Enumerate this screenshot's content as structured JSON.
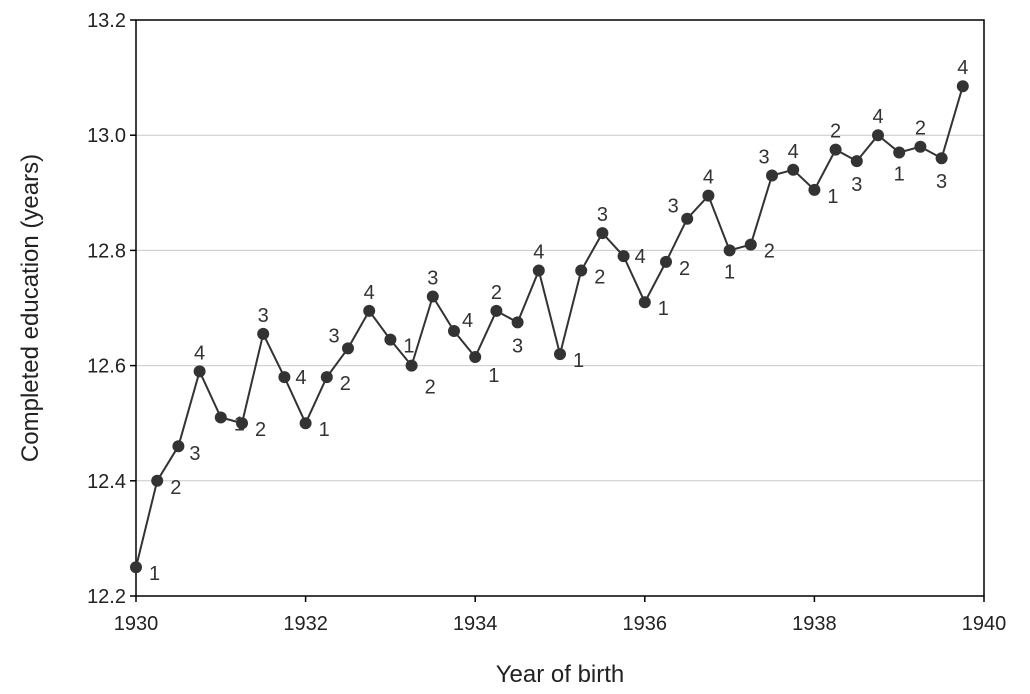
{
  "chart_data": {
    "type": "line",
    "title": "",
    "xlabel": "Year of birth",
    "ylabel": "Completed education (years)",
    "xlim": [
      1930,
      1940
    ],
    "ylim": [
      12.2,
      13.2
    ],
    "x_ticks": [
      "1930",
      "1932",
      "1934",
      "1936",
      "1938",
      "1940"
    ],
    "y_ticks": [
      "12.2",
      "12.4",
      "12.6",
      "12.8",
      "13.0",
      "13.2"
    ],
    "grid": "horizontal",
    "legend": "none",
    "colors": {
      "line": "#333333",
      "grid": "#c8c8c8"
    },
    "series": [
      {
        "points": [
          {
            "x": 1930.0,
            "y": 12.25,
            "q": "1"
          },
          {
            "x": 1930.25,
            "y": 12.4,
            "q": "2"
          },
          {
            "x": 1930.5,
            "y": 12.46,
            "q": "3"
          },
          {
            "x": 1930.75,
            "y": 12.59,
            "q": "4"
          },
          {
            "x": 1931.0,
            "y": 12.51,
            "q": "1"
          },
          {
            "x": 1931.25,
            "y": 12.5,
            "q": "2"
          },
          {
            "x": 1931.5,
            "y": 12.655,
            "q": "3"
          },
          {
            "x": 1931.75,
            "y": 12.58,
            "q": "4"
          },
          {
            "x": 1932.0,
            "y": 12.5,
            "q": "1"
          },
          {
            "x": 1932.25,
            "y": 12.58,
            "q": "2"
          },
          {
            "x": 1932.5,
            "y": 12.63,
            "q": "3"
          },
          {
            "x": 1932.75,
            "y": 12.695,
            "q": "4"
          },
          {
            "x": 1933.0,
            "y": 12.645,
            "q": "1"
          },
          {
            "x": 1933.25,
            "y": 12.6,
            "q": "2"
          },
          {
            "x": 1933.5,
            "y": 12.72,
            "q": "3"
          },
          {
            "x": 1933.75,
            "y": 12.66,
            "q": "4"
          },
          {
            "x": 1934.0,
            "y": 12.615,
            "q": "1"
          },
          {
            "x": 1934.25,
            "y": 12.695,
            "q": "2"
          },
          {
            "x": 1934.5,
            "y": 12.675,
            "q": "3"
          },
          {
            "x": 1934.75,
            "y": 12.765,
            "q": "4"
          },
          {
            "x": 1935.0,
            "y": 12.62,
            "q": "1"
          },
          {
            "x": 1935.25,
            "y": 12.765,
            "q": "2"
          },
          {
            "x": 1935.5,
            "y": 12.83,
            "q": "3"
          },
          {
            "x": 1935.75,
            "y": 12.79,
            "q": "4"
          },
          {
            "x": 1936.0,
            "y": 12.71,
            "q": "1"
          },
          {
            "x": 1936.25,
            "y": 12.78,
            "q": "2"
          },
          {
            "x": 1936.5,
            "y": 12.855,
            "q": "3"
          },
          {
            "x": 1936.75,
            "y": 12.895,
            "q": "4"
          },
          {
            "x": 1937.0,
            "y": 12.8,
            "q": "1"
          },
          {
            "x": 1937.25,
            "y": 12.81,
            "q": "2"
          },
          {
            "x": 1937.5,
            "y": 12.93,
            "q": "3"
          },
          {
            "x": 1937.75,
            "y": 12.94,
            "q": "4"
          },
          {
            "x": 1938.0,
            "y": 12.905,
            "q": "1"
          },
          {
            "x": 1938.25,
            "y": 12.975,
            "q": "2"
          },
          {
            "x": 1938.5,
            "y": 12.955,
            "q": "3"
          },
          {
            "x": 1938.75,
            "y": 13.0,
            "q": "4"
          },
          {
            "x": 1939.0,
            "y": 12.97,
            "q": "1"
          },
          {
            "x": 1939.25,
            "y": 12.98,
            "q": "2"
          },
          {
            "x": 1939.5,
            "y": 12.96,
            "q": "3"
          },
          {
            "x": 1939.75,
            "y": 13.085,
            "q": "4"
          }
        ]
      }
    ]
  }
}
